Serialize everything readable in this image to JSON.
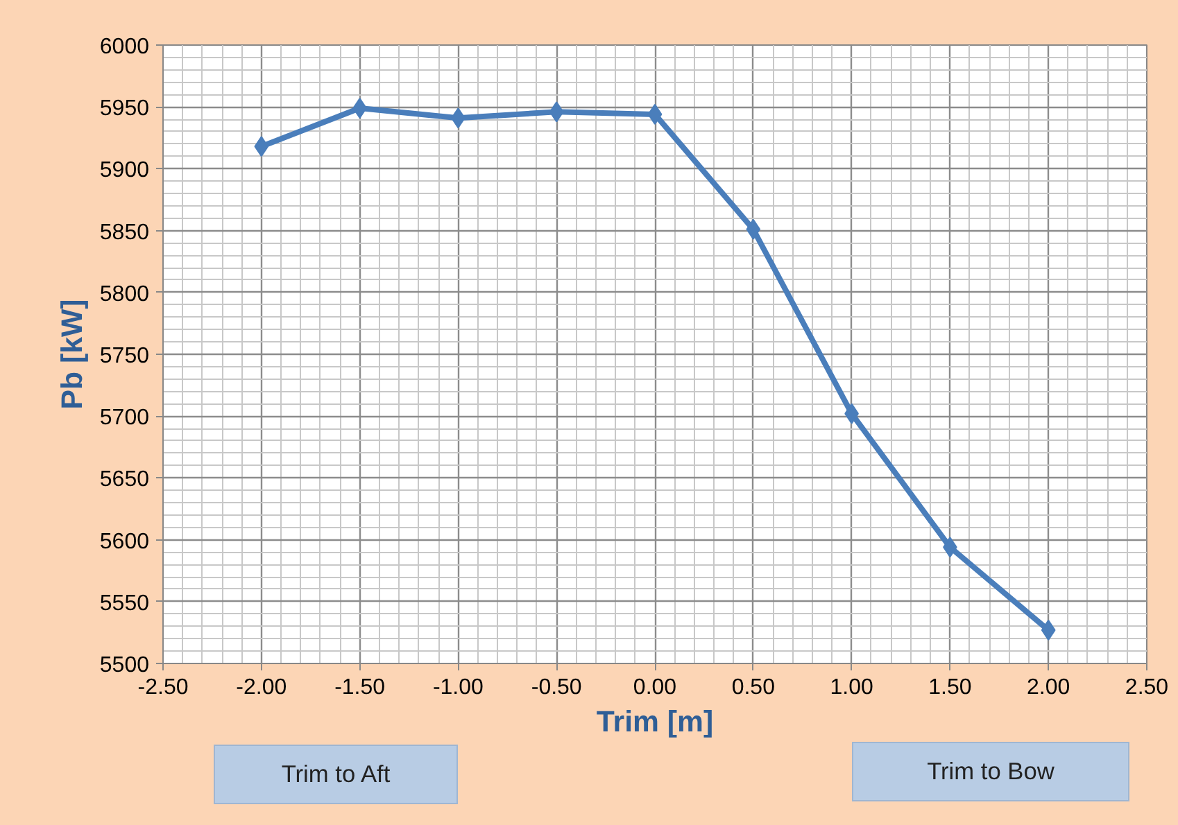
{
  "chart_data": {
    "type": "line",
    "xlabel": "Trim [m]",
    "ylabel": "Pb [kW]",
    "x": [
      -2.0,
      -1.5,
      -1.0,
      -0.5,
      0.0,
      0.5,
      1.0,
      1.5,
      2.0
    ],
    "series": [
      {
        "color": "#4a7ebb",
        "values": [
          5918,
          5949,
          5941,
          5946,
          5944,
          5851,
          5702,
          5594,
          5527
        ]
      }
    ],
    "xlim": [
      -2.5,
      2.5
    ],
    "xticks": [
      {
        "value": -2.5,
        "label": "-2.50"
      },
      {
        "value": -2.0,
        "label": "-2.00"
      },
      {
        "value": -1.5,
        "label": "-1.50"
      },
      {
        "value": -1.0,
        "label": "-1.00"
      },
      {
        "value": -0.5,
        "label": "-0.50"
      },
      {
        "value": 0.0,
        "label": "0.00"
      },
      {
        "value": 0.5,
        "label": "0.50"
      },
      {
        "value": 1.0,
        "label": "1.00"
      },
      {
        "value": 1.5,
        "label": "1.50"
      },
      {
        "value": 2.0,
        "label": "2.00"
      },
      {
        "value": 2.5,
        "label": "2.50"
      }
    ],
    "ylim": [
      5500,
      6000
    ],
    "yticks": [
      5500,
      5550,
      5600,
      5650,
      5700,
      5750,
      5800,
      5850,
      5900,
      5950,
      6000
    ],
    "grid": true,
    "marker": "diamond",
    "line_style": "solid",
    "annotations": [
      "Trim to Aft",
      "Trim to Bow"
    ]
  }
}
